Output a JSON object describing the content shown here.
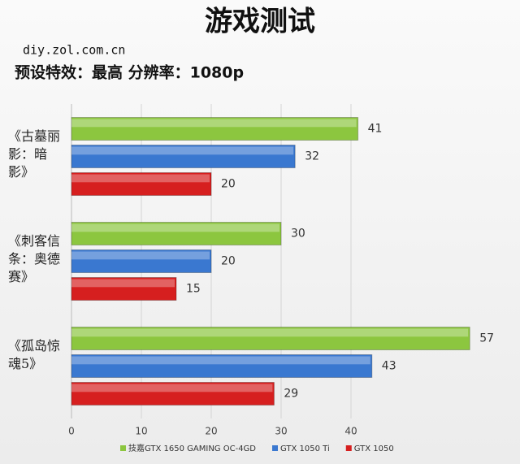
{
  "chart_data": {
    "type": "bar",
    "orientation": "horizontal",
    "title": "游戏测试",
    "source": "diy.zol.com.cn",
    "subtitle": "预设特效：最高   分辨率：1080p",
    "categories": [
      "《古墓丽影：暗影》",
      "《刺客信条：奥德赛》",
      "《孤岛惊魂5》"
    ],
    "series": [
      {
        "name": "技嘉GTX 1650 GAMING OC-4GD",
        "color": "#8cc63f",
        "values": [
          41,
          30,
          57
        ]
      },
      {
        "name": "GTX 1050 Ti",
        "color": "#3a78d0",
        "values": [
          32,
          20,
          43
        ]
      },
      {
        "name": "GTX 1050",
        "color": "#d61f1f",
        "values": [
          20,
          15,
          29
        ]
      }
    ],
    "xlim": [
      0,
      60
    ],
    "xticks": [
      0,
      10,
      20,
      30,
      40
    ],
    "grid": true,
    "legend": "bottom"
  }
}
